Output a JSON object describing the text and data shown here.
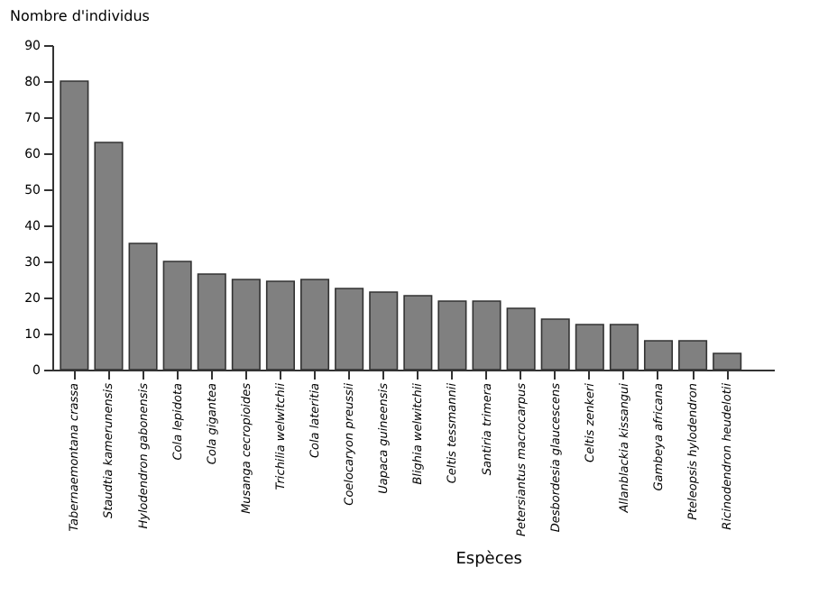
{
  "chart_data": {
    "type": "bar",
    "xlabel": "Espèces",
    "ylabel": "Nombre d'individus",
    "categories": [
      "Tabernaemontana crassa",
      "Staudtia kamerunensis",
      "Hylodendron gabonensis",
      "Cola lepidota",
      "Cola gigantea",
      "Musanga cecropioides",
      "Trichilia welwitchii",
      "Cola lateritia",
      "Coelocaryon preussii",
      "Uapaca guineensis",
      "Blighia welwitchii",
      "Celtis tessmannii",
      "Santiria trimera",
      "Petersiantus macrocarpus",
      "Desbordesia glaucescens",
      "Celtis zenkeri",
      "Allanblackia kissangui",
      "Gambeya africana",
      "Pteleopsis hylodendron",
      "Ricinodendron heudelotii"
    ],
    "values": [
      80,
      63,
      35,
      30,
      26.5,
      25,
      24.5,
      25,
      22.5,
      21.5,
      20.5,
      19,
      19,
      17,
      14,
      12.5,
      12.5,
      8,
      8,
      4.5
    ],
    "color": "#808080",
    "ylim": [
      0,
      90
    ],
    "yticks": [
      0,
      10,
      20,
      30,
      40,
      50,
      60,
      70,
      80,
      90
    ],
    "grid": false
  }
}
